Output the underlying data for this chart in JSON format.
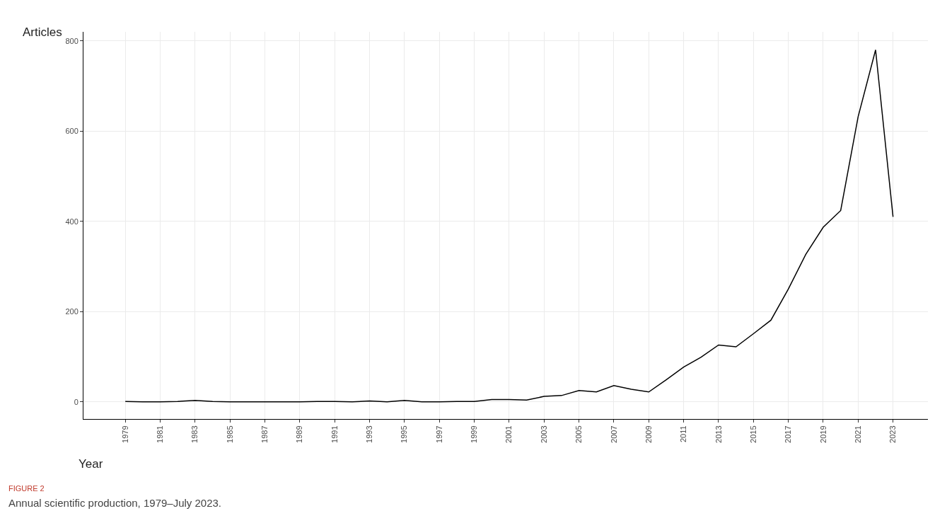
{
  "chart_data": {
    "type": "line",
    "title": "FIGURE 2",
    "subtitle": "Annual scientific production, 1979–July 2023.",
    "xlabel": "Year",
    "ylabel": "Articles",
    "x": [
      1979,
      1980,
      1981,
      1982,
      1983,
      1984,
      1985,
      1986,
      1987,
      1988,
      1989,
      1990,
      1991,
      1992,
      1993,
      1994,
      1995,
      1996,
      1997,
      1998,
      1999,
      2000,
      2001,
      2002,
      2003,
      2004,
      2005,
      2006,
      2007,
      2008,
      2009,
      2010,
      2011,
      2012,
      2013,
      2014,
      2015,
      2016,
      2017,
      2018,
      2019,
      2020,
      2021,
      2022,
      2023
    ],
    "series": [
      {
        "color": "#000000",
        "values": [
          1,
          0,
          0,
          1,
          3,
          1,
          0,
          0,
          0,
          0,
          0,
          1,
          1,
          0,
          2,
          0,
          3,
          0,
          0,
          1,
          1,
          5,
          5,
          4,
          12,
          14,
          25,
          22,
          36,
          28,
          22,
          49,
          77,
          99,
          126,
          122,
          151,
          181,
          250,
          327,
          387,
          424,
          632,
          780,
          410
        ]
      }
    ],
    "xlim": [
      1976.6,
      2025
    ],
    "xticks": [
      1979,
      1981,
      1983,
      1985,
      1987,
      1989,
      1991,
      1993,
      1995,
      1997,
      1999,
      2001,
      2003,
      2005,
      2007,
      2009,
      2011,
      2013,
      2015,
      2017,
      2019,
      2021,
      2023
    ],
    "ylim": [
      -38,
      820
    ],
    "yticks": [
      0,
      200,
      400,
      600,
      800
    ],
    "grid": true,
    "marker": "none",
    "line_style": "solid"
  }
}
